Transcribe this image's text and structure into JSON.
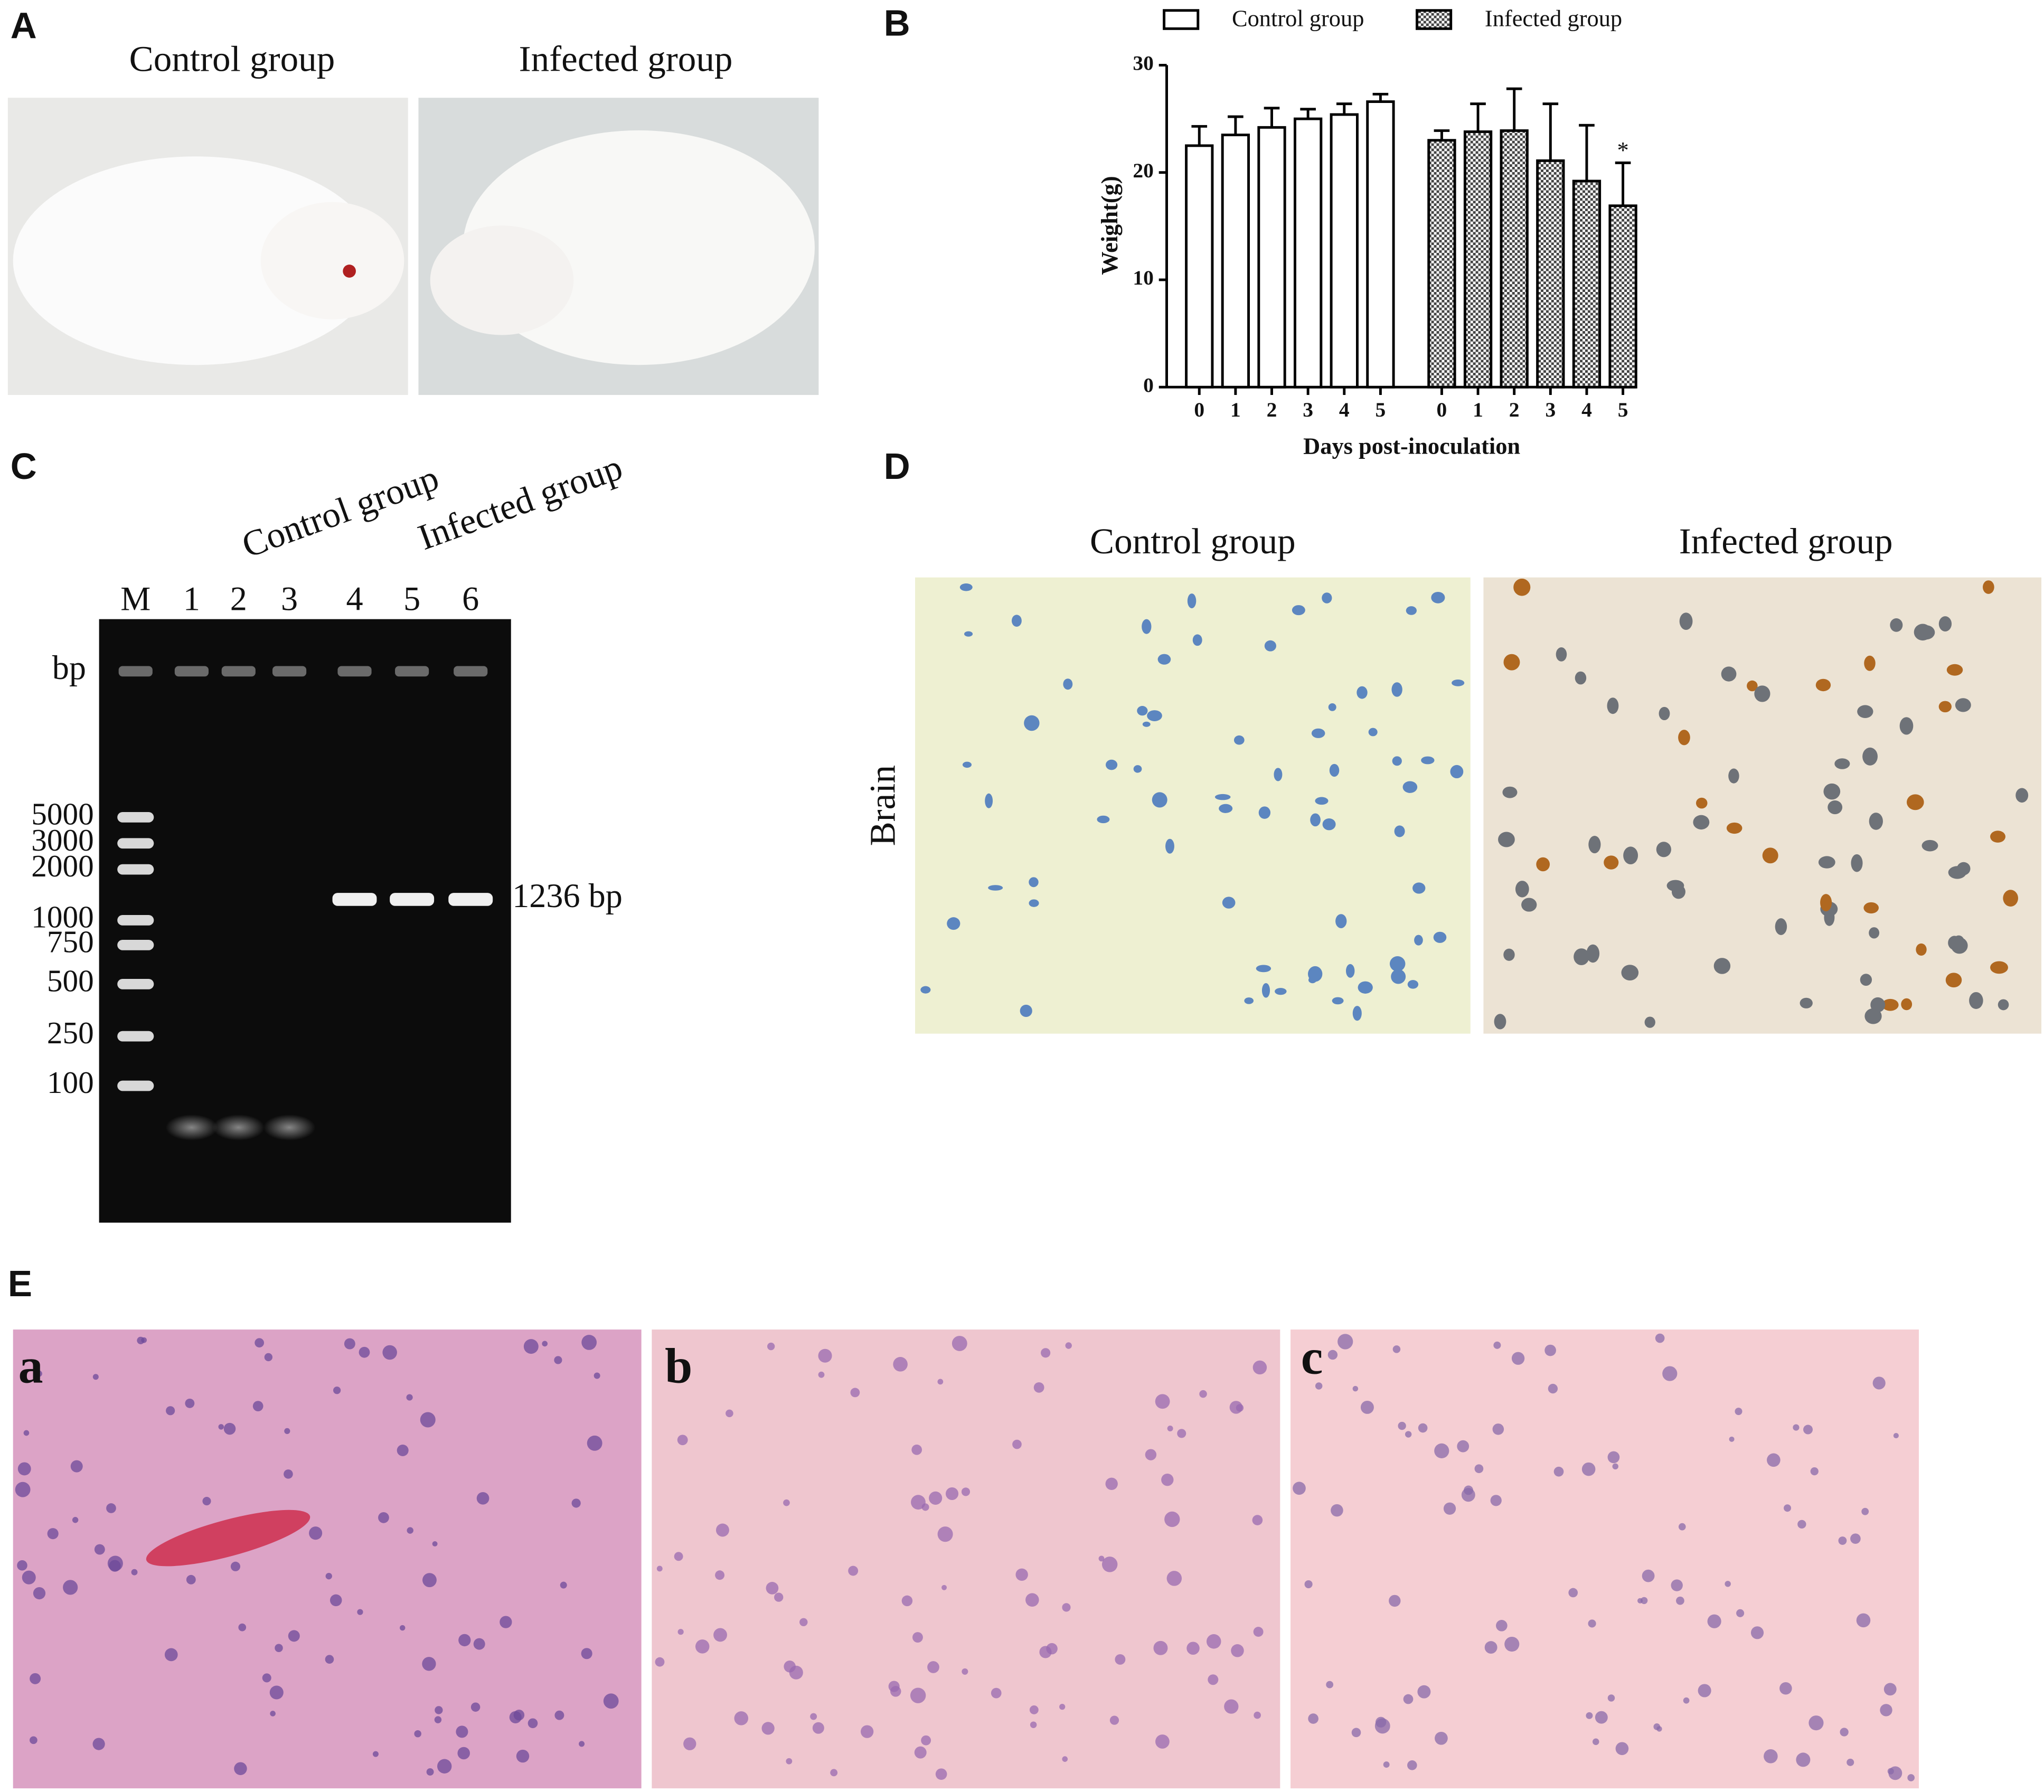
{
  "panel_labels": [
    "A",
    "B",
    "C",
    "D",
    "E"
  ],
  "panel_a": {
    "titles": [
      "Control group",
      "Infected group"
    ]
  },
  "chart_data": {
    "type": "bar",
    "xlabel": "Days post-inoculation",
    "ylabel": "Weight(g)",
    "categories": [
      "0",
      "1",
      "2",
      "3",
      "4",
      "5"
    ],
    "series": [
      {
        "name": "Control group",
        "color": "#ffffff",
        "pattern": "none",
        "values": [
          22.5,
          23.5,
          24.2,
          25.0,
          25.4,
          26.6
        ],
        "errors": [
          1.8,
          1.7,
          1.8,
          0.9,
          1.0,
          0.7
        ]
      },
      {
        "name": "Infected group",
        "color": "#555555",
        "pattern": "checker",
        "values": [
          23.0,
          23.8,
          23.9,
          21.1,
          19.2,
          16.9
        ],
        "errors": [
          0.9,
          2.6,
          3.9,
          5.3,
          5.2,
          4.0
        ]
      }
    ],
    "annotations": [
      {
        "text": "*",
        "series": "Infected group",
        "category": "5"
      }
    ],
    "ylim": [
      0,
      30
    ],
    "yticks": [
      0,
      10,
      20,
      30
    ],
    "legend": "top"
  },
  "panel_c": {
    "group_labels": [
      "Control group",
      "Infected group"
    ],
    "lanes": [
      "M",
      "1",
      "2",
      "3",
      "4",
      "5",
      "6"
    ],
    "bp_label": "bp",
    "ladder": [
      5000,
      3000,
      2000,
      1000,
      750,
      500,
      250,
      100
    ],
    "band_label": "1236 bp"
  },
  "panel_d": {
    "titles": [
      "Control group",
      "Infected group"
    ],
    "row_label": "Brain"
  },
  "panel_e": {
    "sublabels": [
      "a",
      "b",
      "c"
    ]
  }
}
